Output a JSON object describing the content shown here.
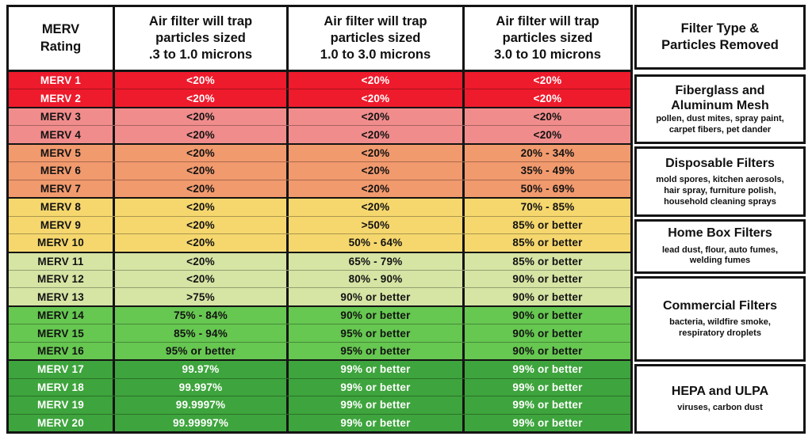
{
  "chart_data": {
    "type": "table",
    "columns": [
      "MERV Rating",
      "Air filter will trap particles sized .3 to 1.0 microns",
      "Air filter will trap particles sized 1.0 to 3.0 microns",
      "Air filter will trap particles sized 3.0 to 10 microns",
      "Filter Type & Particles Removed"
    ],
    "headers_display": {
      "rating": "MERV\nRating",
      "col_03_10": "Air filter will trap\nparticles sized\n.3 to 1.0 microns",
      "col_10_30": "Air filter will trap\nparticles sized\n1.0 to 3.0 microns",
      "col_30_100": "Air filter will trap\nparticles sized\n3.0 to 10 microns",
      "filter_type": "Filter Type &\nParticles Removed"
    },
    "colors": {
      "red": "#ee1b2c",
      "salmon": "#f18c8c",
      "orange": "#f19a6e",
      "yellow": "#f5d76e",
      "lgreen": "#d6e4a4",
      "green": "#66c751",
      "dgreen": "#3ea43d",
      "border": "#141414"
    },
    "rows": [
      {
        "rating": "MERV 1",
        "v1": "<20%",
        "v2": "<20%",
        "v3": "<20%",
        "color": "red",
        "text": "#ffffff",
        "group_end": false
      },
      {
        "rating": "MERV 2",
        "v1": "<20%",
        "v2": "<20%",
        "v3": "<20%",
        "color": "red",
        "text": "#ffffff",
        "group_end": true
      },
      {
        "rating": "MERV 3",
        "v1": "<20%",
        "v2": "<20%",
        "v3": "<20%",
        "color": "salmon",
        "text": "#121212",
        "group_end": false
      },
      {
        "rating": "MERV 4",
        "v1": "<20%",
        "v2": "<20%",
        "v3": "<20%",
        "color": "salmon",
        "text": "#121212",
        "group_end": true
      },
      {
        "rating": "MERV 5",
        "v1": "<20%",
        "v2": "<20%",
        "v3": "20% - 34%",
        "color": "orange",
        "text": "#121212",
        "group_end": false
      },
      {
        "rating": "MERV 6",
        "v1": "<20%",
        "v2": "<20%",
        "v3": "35% - 49%",
        "color": "orange",
        "text": "#121212",
        "group_end": false
      },
      {
        "rating": "MERV 7",
        "v1": "<20%",
        "v2": "<20%",
        "v3": "50% - 69%",
        "color": "orange",
        "text": "#121212",
        "group_end": true
      },
      {
        "rating": "MERV 8",
        "v1": "<20%",
        "v2": "<20%",
        "v3": "70% - 85%",
        "color": "yellow",
        "text": "#121212",
        "group_end": false
      },
      {
        "rating": "MERV 9",
        "v1": "<20%",
        "v2": ">50%",
        "v3": "85% or better",
        "color": "yellow",
        "text": "#121212",
        "group_end": false
      },
      {
        "rating": "MERV 10",
        "v1": "<20%",
        "v2": "50% - 64%",
        "v3": "85% or better",
        "color": "yellow",
        "text": "#121212",
        "group_end": true
      },
      {
        "rating": "MERV 11",
        "v1": "<20%",
        "v2": "65% - 79%",
        "v3": "85% or better",
        "color": "lgreen",
        "text": "#121212",
        "group_end": false
      },
      {
        "rating": "MERV 12",
        "v1": "<20%",
        "v2": "80% - 90%",
        "v3": "90% or better",
        "color": "lgreen",
        "text": "#121212",
        "group_end": false
      },
      {
        "rating": "MERV 13",
        "v1": ">75%",
        "v2": "90% or better",
        "v3": "90% or better",
        "color": "lgreen",
        "text": "#121212",
        "group_end": true
      },
      {
        "rating": "MERV 14",
        "v1": "75% - 84%",
        "v2": "90% or better",
        "v3": "90% or better",
        "color": "green",
        "text": "#121212",
        "group_end": false
      },
      {
        "rating": "MERV 15",
        "v1": "85% - 94%",
        "v2": "95% or better",
        "v3": "90% or better",
        "color": "green",
        "text": "#121212",
        "group_end": false
      },
      {
        "rating": "MERV 16",
        "v1": "95% or better",
        "v2": "95% or better",
        "v3": "90% or better",
        "color": "green",
        "text": "#121212",
        "group_end": true
      },
      {
        "rating": "MERV 17",
        "v1": "99.97%",
        "v2": "99% or better",
        "v3": "99% or better",
        "color": "dgreen",
        "text": "#ffffff",
        "group_end": false
      },
      {
        "rating": "MERV 18",
        "v1": "99.997%",
        "v2": "99% or better",
        "v3": "99% or better",
        "color": "dgreen",
        "text": "#ffffff",
        "group_end": false
      },
      {
        "rating": "MERV 19",
        "v1": "99.9997%",
        "v2": "99% or better",
        "v3": "99% or better",
        "color": "dgreen",
        "text": "#ffffff",
        "group_end": false
      },
      {
        "rating": "MERV 20",
        "v1": "99.99997%",
        "v2": "99% or better",
        "v3": "99% or better",
        "color": "dgreen",
        "text": "#ffffff",
        "group_end": false
      }
    ],
    "filter_types": [
      {
        "title": "Fiberglass and\nAluminum Mesh",
        "particles": "pollen, dust mites, spray paint,\ncarpet fibers, pet dander",
        "row_span": 4,
        "tight": true
      },
      {
        "title": "Disposable Filters",
        "particles": "mold spores, kitchen aerosols,\nhair spray, furniture polish,\nhousehold cleaning sprays",
        "row_span": 4,
        "tight": false
      },
      {
        "title": "Home Box Filters",
        "particles": "lead dust, flour, auto fumes,\nwelding fumes",
        "row_span": 3,
        "tight": false
      },
      {
        "title": "Commercial Filters",
        "particles": "bacteria, wildfire smoke,\nrespiratory droplets",
        "row_span": 5,
        "tight": false
      },
      {
        "title": "HEPA and ULPA",
        "particles": "viruses, carbon dust",
        "row_span": 4,
        "tight": false
      }
    ]
  }
}
